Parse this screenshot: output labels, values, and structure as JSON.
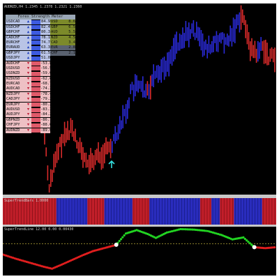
{
  "chart": {
    "header": "AUDNZD,H4 1.2345 1.2378 1.2321 1.2360",
    "meter_title": "Forex Strength Meter",
    "colors": {
      "up": "#2a2ad8",
      "down": "#d82a2a",
      "bg": "#000000",
      "arrow": "#35e0e0"
    }
  },
  "meter_rows": [
    {
      "pair": "USDCAD",
      "dir": "▲",
      "val": "84.9",
      "cur": "USD",
      "cval": "8.6",
      "row_bg": "#b9c4e6",
      "bar": "#3d5be0",
      "cur_bg": "#7c8a2a"
    },
    {
      "pair": "USDCHF",
      "dir": "▲",
      "val": "82.4",
      "cur": "GBP",
      "cval": "6.5",
      "row_bg": "#b9c4e6",
      "bar": "#3d5be0",
      "cur_bg": "#7c8a2a"
    },
    {
      "pair": "GBPCHF",
      "dir": "▲",
      "val": "80.3",
      "cur": "AUD",
      "cval": "5.5",
      "row_bg": "#b9c4e6",
      "bar": "#3d5be0",
      "cur_bg": "#7c8a2a"
    },
    {
      "pair": "CADCHF",
      "dir": "▲",
      "val": "78.1",
      "cur": "NZD",
      "cval": "4.5",
      "row_bg": "#b9c4e6",
      "bar": "#3d5be0",
      "cur_bg": "#7c8a2a"
    },
    {
      "pair": "EURCHF",
      "dir": "▲",
      "val": "74.7",
      "cur": "CAD",
      "cval": "3.4",
      "row_bg": "#b9c4e6",
      "bar": "#3d5be0",
      "cur_bg": "#7c8a2a"
    },
    {
      "pair": "EURAUD",
      "dir": "▲",
      "val": "63.3",
      "cur": "EUR",
      "cval": "2.8",
      "row_bg": "#b9c4e6",
      "bar": "#3d5be0",
      "cur_bg": "#5a6270"
    },
    {
      "pair": "GBPJPY",
      "dir": "▲",
      "val": "61.5",
      "cur": "CHF",
      "cval": "2.1",
      "row_bg": "#b9c4e6",
      "bar": "#3d5be0",
      "cur_bg": "#5a6270"
    },
    {
      "pair": "USDJPY",
      "dir": "▲",
      "val": "51.0",
      "cur": "",
      "cval": "",
      "row_bg": "#b9c4e6",
      "bar": "#3d5be0",
      "cur_bg": ""
    },
    {
      "pair": "AUDCHF",
      "dir": "▼",
      "val": "-53.8",
      "cur": "",
      "cval": "",
      "row_bg": "#eec0c4",
      "bar": "#e05a6a",
      "cur_bg": ""
    },
    {
      "pair": "USDUSD",
      "dir": "▼",
      "val": "-56.5",
      "cur": "",
      "cval": "",
      "row_bg": "#eec0c4",
      "bar": "#e05a6a",
      "cur_bg": ""
    },
    {
      "pair": "USDNZD",
      "dir": "▼",
      "val": "-59.0",
      "cur": "",
      "cval": "",
      "row_bg": "#eec0c4",
      "bar": "#e05a6a",
      "cur_bg": ""
    },
    {
      "pair": "NZDUSD",
      "dir": "▼",
      "val": "-62.6",
      "cur": "",
      "cval": "",
      "row_bg": "#eec0c4",
      "bar": "#e05a6a",
      "cur_bg": ""
    },
    {
      "pair": "EURCAD",
      "dir": "▼",
      "val": "-68.7",
      "cur": "",
      "cval": "",
      "row_bg": "#eec0c4",
      "bar": "#e05a6a",
      "cur_bg": ""
    },
    {
      "pair": "AUDCAD",
      "dir": "▼",
      "val": "-74.3",
      "cur": "",
      "cval": "",
      "row_bg": "#eec0c4",
      "bar": "#e05a6a",
      "cur_bg": ""
    },
    {
      "pair": "NZDJPY",
      "dir": "▼",
      "val": "-78.4",
      "cur": "",
      "cval": "",
      "row_bg": "#eec0c4",
      "bar": "#e05a6a",
      "cur_bg": ""
    },
    {
      "pair": "CADJPY",
      "dir": "▼",
      "val": "-79.2",
      "cur": "",
      "cval": "",
      "row_bg": "#eec0c4",
      "bar": "#e05a6a",
      "cur_bg": ""
    },
    {
      "pair": "EURJPY",
      "dir": "▼",
      "val": "-80.2",
      "cur": "",
      "cval": "",
      "row_bg": "#eec0c4",
      "bar": "#e05a6a",
      "cur_bg": ""
    },
    {
      "pair": "AUDUSD",
      "dir": "▼",
      "val": "-83.3",
      "cur": "",
      "cval": "",
      "row_bg": "#eec0c4",
      "bar": "#e05a6a",
      "cur_bg": ""
    },
    {
      "pair": "AUDJPY",
      "dir": "▼",
      "val": "-84.2",
      "cur": "",
      "cval": "",
      "row_bg": "#eec0c4",
      "bar": "#e05a6a",
      "cur_bg": ""
    },
    {
      "pair": "GBPNZD",
      "dir": "▼",
      "val": "-86.1",
      "cur": "",
      "cval": "",
      "row_bg": "#eec0c4",
      "bar": "#e05a6a",
      "cur_bg": ""
    },
    {
      "pair": "CHFJPY",
      "dir": "▼",
      "val": "-88.6",
      "cur": "",
      "cval": "",
      "row_bg": "#eec0c4",
      "bar": "#e05a6a",
      "cur_bg": ""
    },
    {
      "pair": "AUDNZD",
      "dir": "▼",
      "val": "-89.0",
      "cur": "",
      "cval": "",
      "row_bg": "#eec0c4",
      "bar": "#e05a6a",
      "cur_bg": ""
    }
  ],
  "strip_panel": {
    "label": "SuperTrendBars 1.0000",
    "segments": [
      "red",
      "red",
      "red",
      "red",
      "red",
      "red",
      "red",
      "red",
      "red",
      "red",
      "red",
      "red",
      "red",
      "red",
      "red",
      "red",
      "red",
      "red",
      "red",
      "blue",
      "blue",
      "blue",
      "blue",
      "blue",
      "blue",
      "blue",
      "blue",
      "blue",
      "blue",
      "blue",
      "red",
      "red",
      "red",
      "red",
      "red",
      "red",
      "blue",
      "blue",
      "blue",
      "blue",
      "blue",
      "blue",
      "blue",
      "blue",
      "blue",
      "blue",
      "red",
      "red",
      "red",
      "red",
      "red",
      "red",
      "blue",
      "blue",
      "blue",
      "blue",
      "blue",
      "blue",
      "blue",
      "blue",
      "blue",
      "blue",
      "blue",
      "blue",
      "blue",
      "blue",
      "blue",
      "blue",
      "blue",
      "blue",
      "red",
      "red",
      "red",
      "red",
      "blue",
      "blue",
      "blue",
      "red",
      "red",
      "red",
      "red",
      "red",
      "blue",
      "blue",
      "blue",
      "blue",
      "blue",
      "blue",
      "blue",
      "blue",
      "blue",
      "blue",
      "red",
      "red",
      "red",
      "red",
      "red"
    ]
  },
  "line_panel": {
    "label": "SuperTrendLine 12.00 0.00 0.00430",
    "dash_level": 0.35,
    "points": [
      {
        "x": 0.0,
        "y": 0.57,
        "c": "red"
      },
      {
        "x": 0.05,
        "y": 0.66,
        "c": "red"
      },
      {
        "x": 0.1,
        "y": 0.74,
        "c": "red"
      },
      {
        "x": 0.15,
        "y": 0.82,
        "c": "red"
      },
      {
        "x": 0.18,
        "y": 0.86,
        "c": "red"
      },
      {
        "x": 0.21,
        "y": 0.79,
        "c": "red"
      },
      {
        "x": 0.25,
        "y": 0.69,
        "c": "red"
      },
      {
        "x": 0.29,
        "y": 0.59,
        "c": "red"
      },
      {
        "x": 0.33,
        "y": 0.5,
        "c": "red"
      },
      {
        "x": 0.37,
        "y": 0.44,
        "c": "red"
      },
      {
        "x": 0.41,
        "y": 0.38,
        "c": "red"
      },
      {
        "x": 0.415,
        "y": 0.37,
        "c": "white"
      },
      {
        "x": 0.45,
        "y": 0.14,
        "c": "green"
      },
      {
        "x": 0.49,
        "y": 0.07,
        "c": "green"
      },
      {
        "x": 0.53,
        "y": 0.15,
        "c": "green"
      },
      {
        "x": 0.56,
        "y": 0.23,
        "c": "green"
      },
      {
        "x": 0.6,
        "y": 0.12,
        "c": "green"
      },
      {
        "x": 0.65,
        "y": 0.05,
        "c": "green"
      },
      {
        "x": 0.7,
        "y": 0.06,
        "c": "green"
      },
      {
        "x": 0.75,
        "y": 0.09,
        "c": "green"
      },
      {
        "x": 0.8,
        "y": 0.17,
        "c": "green"
      },
      {
        "x": 0.84,
        "y": 0.26,
        "c": "green"
      },
      {
        "x": 0.88,
        "y": 0.22,
        "c": "green"
      },
      {
        "x": 0.91,
        "y": 0.37,
        "c": "green"
      },
      {
        "x": 0.92,
        "y": 0.42,
        "c": "white"
      },
      {
        "x": 0.96,
        "y": 0.44,
        "c": "red"
      },
      {
        "x": 1.0,
        "y": 0.42,
        "c": "red"
      }
    ]
  }
}
